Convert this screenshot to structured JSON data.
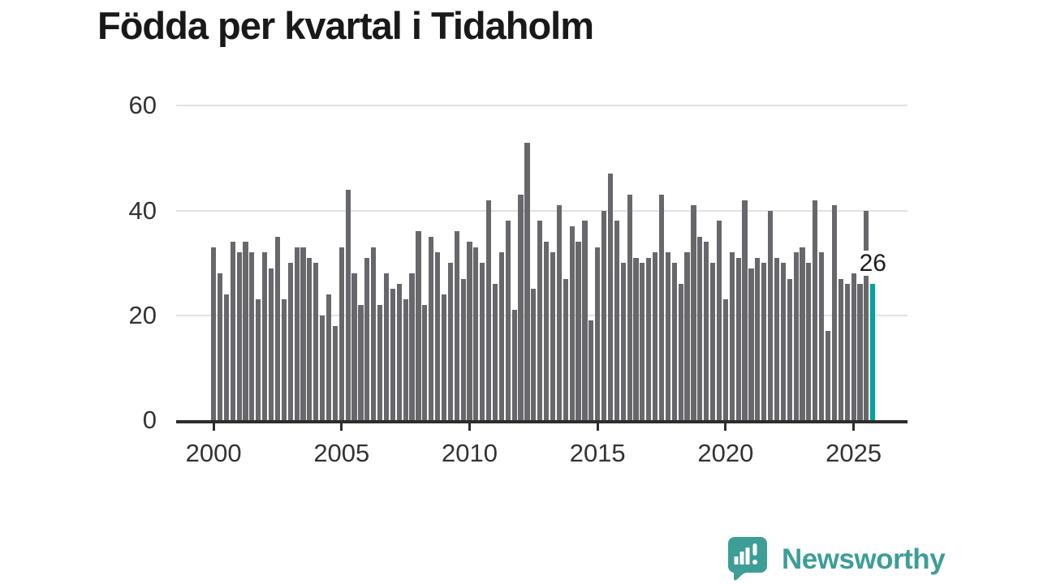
{
  "title": "Födda per kvartal i Tidaholm",
  "chart_data": {
    "type": "bar",
    "title": "Födda per kvartal i Tidaholm",
    "x_tick_labels": [
      "2000",
      "2005",
      "2010",
      "2015",
      "2020",
      "2025"
    ],
    "bars_per_x_tick": 20,
    "y_ticks": [
      0,
      20,
      40,
      60
    ],
    "ylim": [
      0,
      60
    ],
    "grid": true,
    "values": [
      33,
      28,
      24,
      34,
      32,
      34,
      32,
      23,
      32,
      29,
      35,
      23,
      30,
      33,
      33,
      31,
      30,
      20,
      24,
      18,
      33,
      44,
      28,
      22,
      31,
      33,
      22,
      28,
      25,
      26,
      23,
      28,
      36,
      22,
      35,
      32,
      24,
      30,
      36,
      27,
      34,
      33,
      30,
      42,
      26,
      32,
      38,
      21,
      43,
      53,
      25,
      38,
      34,
      32,
      41,
      27,
      37,
      34,
      38,
      19,
      33,
      40,
      47,
      38,
      30,
      43,
      31,
      30,
      31,
      32,
      43,
      32,
      30,
      26,
      32,
      41,
      35,
      34,
      30,
      38,
      23,
      32,
      31,
      42,
      29,
      31,
      30,
      40,
      31,
      30,
      27,
      32,
      33,
      30,
      42,
      32,
      17,
      41,
      27,
      26,
      28,
      26,
      40,
      26
    ],
    "highlight_index": 103,
    "highlight_value": 26,
    "annotation_label": "26",
    "bar_color": "#67676c",
    "highlight_color": "#00a39e",
    "axis_color": "#2d2d2d",
    "gridline_color": "#e2e2e2"
  },
  "branding": {
    "logo_text": "Newsworthy",
    "logo_color": "#3d9e97"
  }
}
